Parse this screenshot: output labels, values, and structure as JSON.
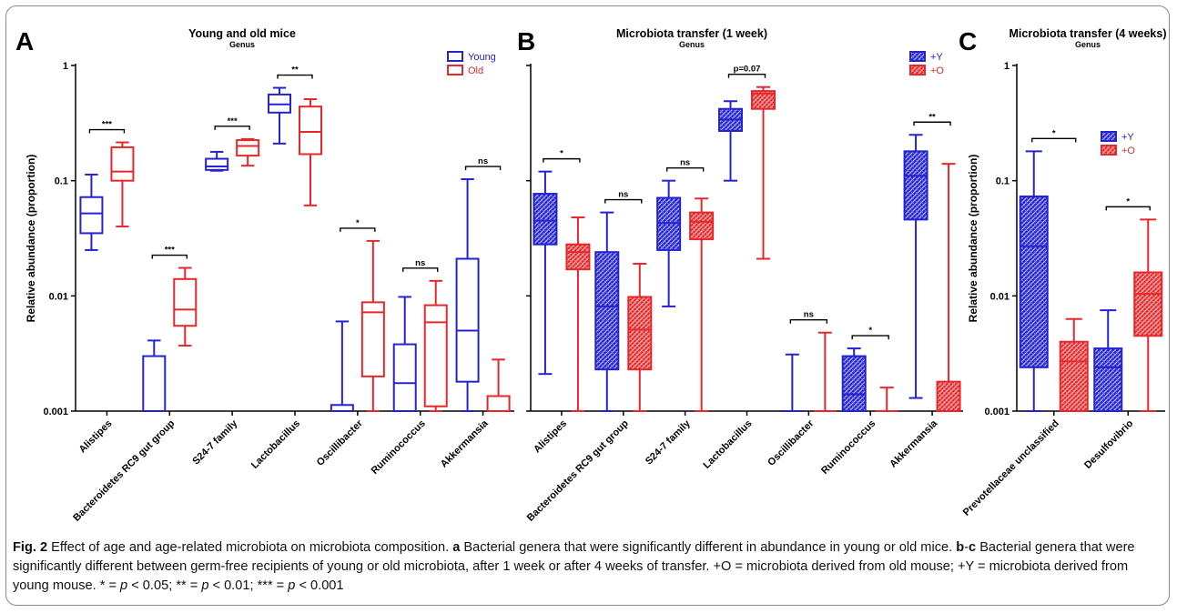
{
  "colors": {
    "young": "#2323d2",
    "old": "#e8272a",
    "axis": "#000000"
  },
  "chart_data": [
    {
      "type": "box",
      "panel_letter": "A",
      "title": "Young and old mice",
      "subtitle": "Genus",
      "ylabel": "Relative abundance (proportion)",
      "yscale": "log",
      "ylim": [
        0.001,
        1
      ],
      "yticks": [
        {
          "value": 1,
          "label": "1"
        },
        {
          "value": 0.1,
          "label": "0.1"
        },
        {
          "value": 0.01,
          "label": "0.01"
        },
        {
          "value": 0.001,
          "label": "0.001"
        }
      ],
      "categories": [
        "Alistipes",
        "Bacteroidetes RC9 gut group",
        "S24-7 family",
        "Lactobacillus",
        "Oscillibacter",
        "Ruminococcus",
        "Akkermansia"
      ],
      "legend": [
        {
          "name": "Young",
          "color": "young",
          "style": "outline"
        },
        {
          "name": "Old",
          "color": "old",
          "style": "outline"
        }
      ],
      "legend_position": "top-right",
      "series": [
        {
          "name": "Young",
          "color": "young",
          "style": "outline",
          "boxes": [
            {
              "min": 0.025,
              "q1": 0.035,
              "median": 0.052,
              "q3": 0.072,
              "max": 0.113
            },
            {
              "min": 0.001,
              "q1": 0.001,
              "median": 0.001,
              "q3": 0.003,
              "max": 0.0041
            },
            {
              "min": 0.122,
              "q1": 0.124,
              "median": 0.133,
              "q3": 0.155,
              "max": 0.178
            },
            {
              "min": 0.21,
              "q1": 0.39,
              "median": 0.46,
              "q3": 0.56,
              "max": 0.64
            },
            {
              "min": 0.001,
              "q1": 0.001,
              "median": 0.001,
              "q3": 0.00113,
              "max": 0.006
            },
            {
              "min": 0.001,
              "q1": 0.001,
              "median": 0.00175,
              "q3": 0.0038,
              "max": 0.0098
            },
            {
              "min": 0.001,
              "q1": 0.0018,
              "median": 0.005,
              "q3": 0.021,
              "max": 0.103
            }
          ]
        },
        {
          "name": "Old",
          "color": "old",
          "style": "outline",
          "boxes": [
            {
              "min": 0.04,
              "q1": 0.1,
              "median": 0.12,
              "q3": 0.195,
              "max": 0.215
            },
            {
              "min": 0.0037,
              "q1": 0.0055,
              "median": 0.0076,
              "q3": 0.014,
              "max": 0.0175
            },
            {
              "min": 0.135,
              "q1": 0.165,
              "median": 0.2,
              "q3": 0.225,
              "max": 0.23
            },
            {
              "min": 0.061,
              "q1": 0.17,
              "median": 0.265,
              "q3": 0.44,
              "max": 0.51
            },
            {
              "min": 0.001,
              "q1": 0.002,
              "median": 0.0072,
              "q3": 0.0088,
              "max": 0.03
            },
            {
              "min": 0.001,
              "q1": 0.0011,
              "median": 0.0059,
              "q3": 0.0083,
              "max": 0.0135
            },
            {
              "min": 0.001,
              "q1": 0.001,
              "median": 0.001,
              "q3": 0.00135,
              "max": 0.0028
            }
          ]
        }
      ],
      "significance": [
        "***",
        "***",
        "***",
        "**",
        "*",
        "ns",
        "ns"
      ]
    },
    {
      "type": "box",
      "panel_letter": "B",
      "title": "Microbiota transfer (1 week)",
      "subtitle": "Genus",
      "ylabel": "",
      "yscale": "log",
      "ylim": [
        0.001,
        1
      ],
      "yticks": [
        {
          "value": 1,
          "label": ""
        },
        {
          "value": 0.1,
          "label": ""
        },
        {
          "value": 0.01,
          "label": ""
        },
        {
          "value": 0.001,
          "label": ""
        }
      ],
      "categories": [
        "Alistipes",
        "Bacteroidetes RC9 gut group",
        "S24-7 family",
        "Lactobacillus",
        "Oscillibacter",
        "Ruminococcus",
        "Akkermansia"
      ],
      "legend": [
        {
          "name": "+Y",
          "color": "young",
          "style": "hatched"
        },
        {
          "name": "+O",
          "color": "old",
          "style": "hatched"
        }
      ],
      "legend_position": "top-right",
      "series": [
        {
          "name": "+Y",
          "color": "young",
          "style": "hatched",
          "boxes": [
            {
              "min": 0.0021,
              "q1": 0.028,
              "median": 0.045,
              "q3": 0.077,
              "max": 0.12
            },
            {
              "min": 0.001,
              "q1": 0.0023,
              "median": 0.0081,
              "q3": 0.024,
              "max": 0.053
            },
            {
              "min": 0.0081,
              "q1": 0.025,
              "median": 0.043,
              "q3": 0.071,
              "max": 0.1
            },
            {
              "min": 0.1,
              "q1": 0.27,
              "median": 0.34,
              "q3": 0.42,
              "max": 0.49
            },
            {
              "min": 0.001,
              "q1": 0.001,
              "median": 0.001,
              "q3": 0.001,
              "max": 0.0031
            },
            {
              "min": 0.001,
              "q1": 0.001,
              "median": 0.0014,
              "q3": 0.003,
              "max": 0.0035
            },
            {
              "min": 0.0013,
              "q1": 0.046,
              "median": 0.11,
              "q3": 0.18,
              "max": 0.25
            }
          ]
        },
        {
          "name": "+O",
          "color": "old",
          "style": "hatched",
          "boxes": [
            {
              "min": 0.001,
              "q1": 0.017,
              "median": 0.024,
              "q3": 0.028,
              "max": 0.048
            },
            {
              "min": 0.001,
              "q1": 0.0023,
              "median": 0.0051,
              "q3": 0.0098,
              "max": 0.019
            },
            {
              "min": 0.001,
              "q1": 0.031,
              "median": 0.044,
              "q3": 0.053,
              "max": 0.07
            },
            {
              "min": 0.021,
              "q1": 0.42,
              "median": 0.57,
              "q3": 0.6,
              "max": 0.65
            },
            {
              "min": 0.001,
              "q1": 0.001,
              "median": 0.001,
              "q3": 0.001,
              "max": 0.0048
            },
            {
              "min": 0.001,
              "q1": 0.001,
              "median": 0.001,
              "q3": 0.001,
              "max": 0.0016
            },
            {
              "min": 0.001,
              "q1": 0.001,
              "median": 0.001,
              "q3": 0.0018,
              "max": 0.14
            }
          ]
        }
      ],
      "significance": [
        "*",
        "ns",
        "ns",
        "p=0.07",
        "ns",
        "*",
        "**"
      ]
    },
    {
      "type": "box",
      "panel_letter": "C",
      "title": "Microbiota transfer (4 weeks)",
      "subtitle": "Genus",
      "ylabel": "Relative abundance (proportion)",
      "yscale": "log",
      "ylim": [
        0.001,
        1
      ],
      "yticks": [
        {
          "value": 1,
          "label": "1"
        },
        {
          "value": 0.1,
          "label": "0.1"
        },
        {
          "value": 0.01,
          "label": "0.01"
        },
        {
          "value": 0.001,
          "label": "0.001"
        }
      ],
      "categories": [
        "Prevotellaceae unclassified",
        "Desulfovibrio"
      ],
      "legend": [
        {
          "name": "+Y",
          "color": "young",
          "style": "hatched"
        },
        {
          "name": "+O",
          "color": "old",
          "style": "hatched"
        }
      ],
      "legend_position": "top-right",
      "series": [
        {
          "name": "+Y",
          "color": "young",
          "style": "hatched",
          "boxes": [
            {
              "min": 0.001,
              "q1": 0.0024,
              "median": 0.027,
              "q3": 0.073,
              "max": 0.18
            },
            {
              "min": 0.001,
              "q1": 0.001,
              "median": 0.0024,
              "q3": 0.0035,
              "max": 0.0075
            }
          ]
        },
        {
          "name": "+O",
          "color": "old",
          "style": "hatched",
          "boxes": [
            {
              "min": 0.001,
              "q1": 0.001,
              "median": 0.0027,
              "q3": 0.004,
              "max": 0.0063
            },
            {
              "min": 0.001,
              "q1": 0.0045,
              "median": 0.0104,
              "q3": 0.016,
              "max": 0.046
            }
          ]
        }
      ],
      "significance": [
        "*",
        "*"
      ]
    }
  ],
  "caption": {
    "fig_label": "Fig. 2",
    "s1": " Effect of age and age-related microbiota on microbiota composition. ",
    "a_label": "a",
    "s2": " Bacterial genera that were significantly different in abundance in young or old mice. ",
    "b_label": "b",
    "dash": "-",
    "c_label": "c",
    "s3": " Bacterial genera that were significantly different between germ-free recipients of young or old microbiota, after 1 week or after 4 weeks of transfer. +O = microbiota derived from old mouse; +Y = microbiota derived from young mouse. * = ",
    "p1": "p",
    "s4": " < 0.05; ** = ",
    "p2": "p",
    "s5": " < 0.01; *** = ",
    "p3": "p",
    "s6": " < 0.001"
  }
}
